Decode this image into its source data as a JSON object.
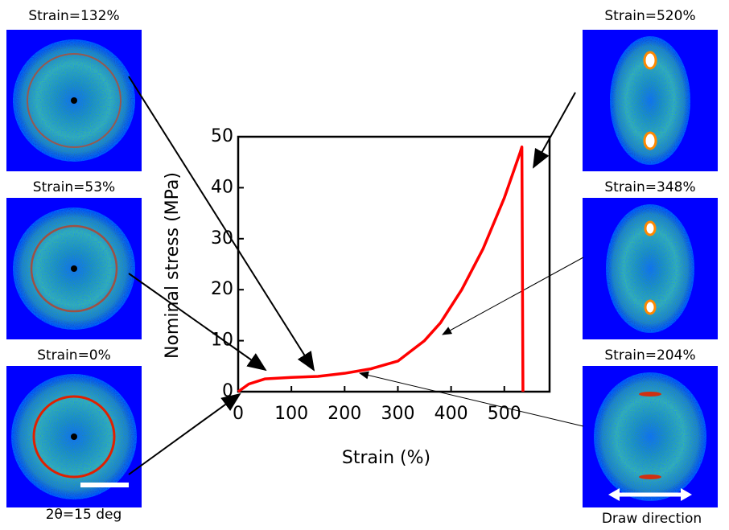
{
  "chart_data": {
    "type": "line",
    "x_label": "Strain (%)",
    "y_label": "Nominal stress (MPa)",
    "x": [
      0,
      20,
      50,
      100,
      150,
      200,
      250,
      300,
      350,
      380,
      420,
      460,
      500,
      530,
      533,
      535
    ],
    "series": [
      {
        "color": "#ff0000",
        "values": [
          0,
          1.5,
          2.5,
          2.8,
          3,
          3.6,
          4.5,
          6,
          10,
          13.5,
          20,
          28,
          38,
          47,
          48,
          0
        ]
      }
    ],
    "xlim": [
      0,
      585
    ],
    "ylim": [
      0,
      50
    ],
    "xticks": [
      0,
      100,
      200,
      300,
      400,
      500
    ],
    "yticks": [
      0,
      10,
      20,
      30,
      40,
      50
    ],
    "annotations": [
      "Strain=132%",
      "Strain=53%",
      "Strain=0%",
      "Strain=520%",
      "Strain=348%",
      "Strain=204%",
      "2θ=15 deg",
      "Draw direction"
    ]
  }
}
